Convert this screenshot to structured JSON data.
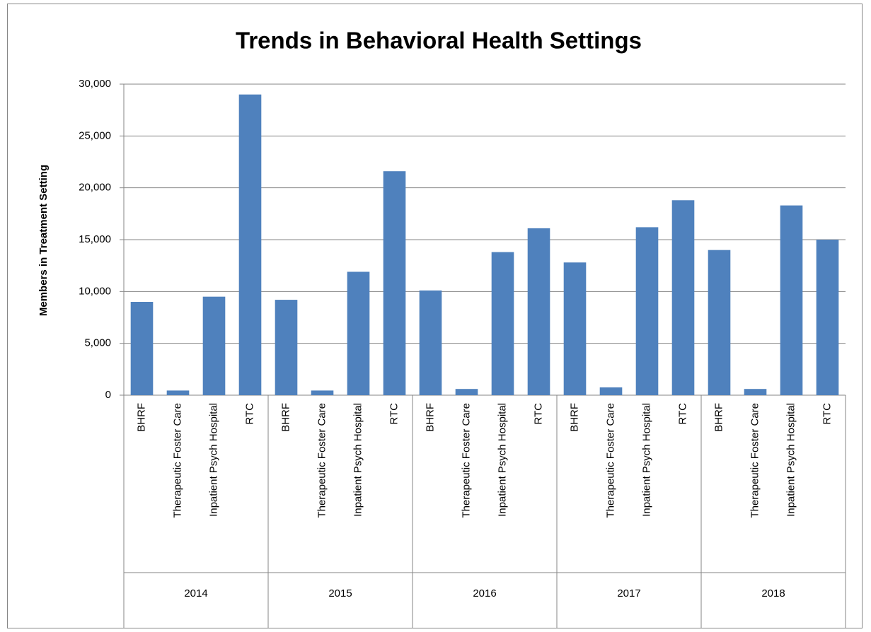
{
  "chart_data": {
    "type": "bar",
    "title": "Trends in Behavioral Health Settings",
    "y_label": "Members in Treatment Setting",
    "color": "#4f81bd",
    "grid": true,
    "ylim": [
      0,
      30000
    ],
    "yticks": [
      0,
      {
        "value": 5000,
        "label": "5,000"
      },
      {
        "value": 10000,
        "label": "10,000"
      },
      {
        "value": 15000,
        "label": "15,000"
      },
      {
        "value": 20000,
        "label": "20,000"
      },
      {
        "value": 25000,
        "label": "25,000"
      },
      {
        "value": 30000,
        "label": "30,000"
      }
    ],
    "groups": [
      {
        "label": "2014",
        "categories": [
          "BHRF",
          "Therapeutic Foster Care",
          "Inpatient Psych Hospital",
          "RTC"
        ],
        "values": [
          9000,
          450,
          9500,
          29000
        ]
      },
      {
        "label": "2015",
        "categories": [
          "BHRF",
          "Therapeutic Foster Care",
          "Inpatient Psych Hospital",
          "RTC"
        ],
        "values": [
          9200,
          450,
          11900,
          21600
        ]
      },
      {
        "label": "2016",
        "categories": [
          "BHRF",
          "Therapeutic Foster Care",
          "Inpatient Psych Hospital",
          "RTC"
        ],
        "values": [
          10100,
          600,
          13800,
          16100
        ]
      },
      {
        "label": "2017",
        "categories": [
          "BHRF",
          "Therapeutic Foster Care",
          "Inpatient Psych Hospital",
          "RTC"
        ],
        "values": [
          12800,
          750,
          16200,
          18800
        ]
      },
      {
        "label": "2018",
        "categories": [
          "BHRF",
          "Therapeutic Foster Care",
          "Inpatient Psych Hospital",
          "RTC"
        ],
        "values": [
          14000,
          600,
          18300,
          15000
        ]
      }
    ]
  }
}
